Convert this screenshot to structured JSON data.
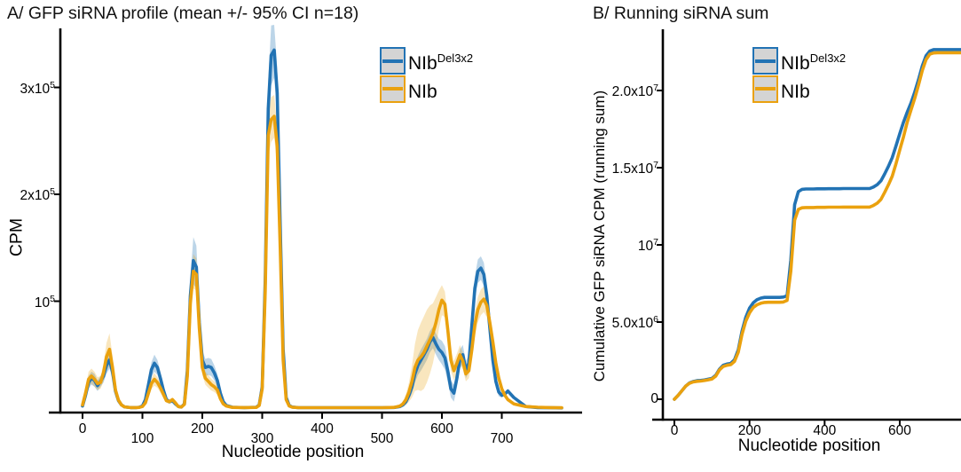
{
  "panels": {
    "a": {
      "title": "A/ GFP siRNA profile (mean +/- 95% CI n=18)",
      "xlabel": "Nucleotide position",
      "ylabel": "CPM"
    },
    "b": {
      "title": "B/ Running siRNA sum",
      "xlabel": "Nucleotide position",
      "ylabel": "Cumulative GFP siRNA CPM (running sum)"
    }
  },
  "legend": {
    "items": [
      {
        "label": "NIb",
        "sup": "Del3x2",
        "color": "#2273B4"
      },
      {
        "label": "NIb",
        "sup": "",
        "color": "#EAA10E"
      }
    ],
    "key_fill": "#d4d4d4"
  },
  "colors": {
    "blue_line": "#2273B4",
    "orange_line": "#EAA10E",
    "blue_band": "rgba(34,115,180,0.30)",
    "orange_band": "rgba(234,161,14,0.27)",
    "axis": "#000000"
  },
  "chart_data": [
    {
      "panel": "A",
      "type": "line",
      "title": "A/ GFP siRNA profile (mean +/- 95% CI n=18)",
      "xlabel": "Nucleotide position",
      "ylabel": "CPM",
      "xlim": [
        0,
        800
      ],
      "ylim": [
        0,
        350000
      ],
      "grid": false,
      "legend_position": "top-right-inside",
      "x_ticks": [
        0,
        100,
        200,
        300,
        400,
        500,
        600,
        700
      ],
      "y_ticks": [
        {
          "value": 100000,
          "base": "10",
          "sup": "5"
        },
        {
          "value": 200000,
          "base": "2x10",
          "sup": "5"
        },
        {
          "value": 300000,
          "base": "3x10",
          "sup": "5"
        }
      ],
      "x": [
        0,
        5,
        10,
        15,
        20,
        25,
        30,
        35,
        40,
        45,
        50,
        55,
        60,
        65,
        70,
        80,
        90,
        95,
        100,
        105,
        110,
        115,
        120,
        125,
        130,
        135,
        140,
        145,
        150,
        155,
        160,
        165,
        170,
        175,
        180,
        185,
        190,
        195,
        200,
        205,
        210,
        215,
        220,
        225,
        230,
        235,
        240,
        250,
        270,
        290,
        295,
        300,
        305,
        310,
        315,
        320,
        325,
        330,
        335,
        340,
        345,
        350,
        360,
        380,
        420,
        460,
        500,
        520,
        530,
        535,
        540,
        545,
        550,
        555,
        560,
        565,
        570,
        575,
        580,
        585,
        590,
        595,
        600,
        605,
        610,
        615,
        620,
        625,
        630,
        635,
        640,
        645,
        650,
        655,
        660,
        665,
        670,
        675,
        680,
        685,
        690,
        695,
        700,
        705,
        710,
        720,
        740,
        760,
        780,
        800
      ],
      "series": [
        {
          "name": "NIbDel3x2",
          "values": [
            2000,
            12000,
            24000,
            28000,
            26000,
            21000,
            25000,
            30000,
            40000,
            45000,
            34000,
            16000,
            7000,
            3000,
            1200,
            500,
            500,
            800,
            2000,
            8000,
            22000,
            36000,
            42000,
            38000,
            28000,
            17000,
            8000,
            6000,
            7000,
            4000,
            1500,
            1000,
            4000,
            35000,
            105000,
            138000,
            132000,
            80000,
            45000,
            38000,
            39000,
            38000,
            33000,
            26000,
            14000,
            6000,
            2500,
            800,
            500,
            800,
            3000,
            20000,
            120000,
            280000,
            330000,
            335000,
            295000,
            170000,
            55000,
            10000,
            2500,
            1000,
            500,
            400,
            400,
            400,
            400,
            600,
            1500,
            3000,
            6000,
            12000,
            20000,
            32000,
            40000,
            45000,
            50000,
            55000,
            62000,
            66000,
            60000,
            55000,
            52000,
            47000,
            34000,
            18000,
            14000,
            28000,
            46000,
            50000,
            36000,
            42000,
            78000,
            112000,
            128000,
            131000,
            125000,
            105000,
            75000,
            45000,
            25000,
            15000,
            12000,
            13000,
            16000,
            10000,
            1500,
            500,
            300,
            200
          ],
          "ci": [
            1000,
            4000,
            6000,
            6000,
            6000,
            5000,
            5000,
            6000,
            8000,
            8000,
            7000,
            5000,
            2500,
            1200,
            600,
            300,
            300,
            300,
            800,
            2500,
            5000,
            7000,
            8000,
            7000,
            6000,
            4000,
            2500,
            2000,
            2000,
            1200,
            600,
            500,
            1500,
            8000,
            16000,
            22000,
            20000,
            14000,
            9000,
            8000,
            8000,
            8000,
            7000,
            6000,
            4000,
            2000,
            1000,
            400,
            300,
            400,
            1200,
            6000,
            18000,
            26000,
            28000,
            26000,
            24000,
            18000,
            8000,
            2500,
            1000,
            400,
            300,
            300,
            300,
            300,
            300,
            400,
            800,
            1500,
            2500,
            4000,
            6000,
            8000,
            9000,
            10000,
            10000,
            10000,
            10000,
            10000,
            10000,
            10000,
            11000,
            11000,
            10000,
            8000,
            8000,
            9000,
            9000,
            9000,
            8000,
            8000,
            10000,
            11000,
            11000,
            11000,
            11000,
            10000,
            9000,
            8000,
            6000,
            4000,
            2000,
            1200,
            800,
            500,
            300,
            300,
            200,
            200
          ]
        },
        {
          "name": "NIb",
          "values": [
            3000,
            14000,
            27000,
            30000,
            27000,
            23000,
            24000,
            33000,
            48000,
            55000,
            38000,
            17000,
            7500,
            3000,
            1200,
            500,
            500,
            700,
            1500,
            5000,
            14000,
            23000,
            27000,
            24000,
            19000,
            13000,
            7000,
            6000,
            8000,
            5000,
            1500,
            1000,
            3500,
            30000,
            98000,
            128000,
            125000,
            75000,
            38000,
            28000,
            25000,
            22000,
            20000,
            17000,
            9000,
            4000,
            2000,
            700,
            500,
            700,
            2500,
            18000,
            110000,
            255000,
            270000,
            273000,
            245000,
            150000,
            45000,
            8000,
            2000,
            800,
            500,
            400,
            400,
            400,
            400,
            700,
            2000,
            4000,
            8000,
            15000,
            25000,
            38000,
            45000,
            48000,
            52000,
            58000,
            64000,
            70000,
            80000,
            92000,
            101000,
            97000,
            72000,
            45000,
            35000,
            42000,
            50000,
            44000,
            32000,
            35000,
            55000,
            78000,
            92000,
            99000,
            102000,
            96000,
            80000,
            62000,
            42000,
            28000,
            18000,
            12000,
            8000,
            4000,
            1500,
            800,
            500,
            300
          ],
          "ci": [
            1500,
            5000,
            7000,
            7000,
            7000,
            6000,
            6000,
            8000,
            13000,
            15000,
            11000,
            6000,
            3000,
            1500,
            700,
            300,
            300,
            300,
            600,
            2000,
            4000,
            5000,
            6000,
            5000,
            4500,
            3500,
            2000,
            1800,
            2000,
            1200,
            600,
            500,
            1200,
            7000,
            13000,
            16000,
            15000,
            11000,
            7000,
            6000,
            6000,
            5500,
            5000,
            4500,
            3000,
            1500,
            800,
            300,
            300,
            400,
            1000,
            5000,
            15000,
            20000,
            21000,
            20000,
            18000,
            14000,
            6000,
            2000,
            800,
            400,
            300,
            300,
            300,
            300,
            300,
            500,
            1200,
            2500,
            5000,
            9000,
            15000,
            22000,
            28000,
            32000,
            34000,
            34000,
            32000,
            28000,
            24000,
            18000,
            14000,
            12000,
            11000,
            10000,
            9000,
            9000,
            9000,
            8000,
            7000,
            7000,
            9000,
            11000,
            12000,
            12000,
            12000,
            11000,
            10000,
            9000,
            8000,
            6000,
            3000,
            1800,
            1200,
            700,
            400,
            300,
            200,
            200
          ]
        }
      ]
    },
    {
      "panel": "B",
      "type": "line",
      "title": "B/ Running siRNA sum",
      "xlabel": "Nucleotide position",
      "ylabel": "Cumulative GFP siRNA CPM (running sum)",
      "xlim": [
        0,
        780
      ],
      "ylim_millions": [
        0,
        23
      ],
      "grid": false,
      "legend_position": "top-inside",
      "x_ticks": [
        0,
        200,
        400,
        600
      ],
      "y_ticks": [
        {
          "millions": 0,
          "base": "0",
          "sup": ""
        },
        {
          "millions": 5,
          "base": "5.0x10",
          "sup": "6"
        },
        {
          "millions": 10,
          "base": "10",
          "sup": "7"
        },
        {
          "millions": 15,
          "base": "1.5x10",
          "sup": "7"
        },
        {
          "millions": 20,
          "base": "2.0x10",
          "sup": "7"
        }
      ],
      "x": [
        0,
        10,
        20,
        30,
        40,
        50,
        60,
        70,
        80,
        90,
        100,
        110,
        120,
        130,
        140,
        150,
        160,
        170,
        180,
        190,
        200,
        210,
        220,
        230,
        240,
        250,
        260,
        270,
        280,
        290,
        300,
        310,
        320,
        330,
        340,
        350,
        360,
        370,
        380,
        390,
        400,
        410,
        420,
        430,
        440,
        450,
        460,
        470,
        480,
        490,
        500,
        510,
        520,
        530,
        540,
        550,
        560,
        570,
        580,
        590,
        600,
        610,
        620,
        630,
        640,
        650,
        660,
        670,
        680,
        690,
        700,
        710,
        720,
        730,
        740,
        750,
        760,
        770,
        780
      ],
      "series": [
        {
          "name": "NIbDel3x2",
          "values_millions": [
            0,
            0.25,
            0.55,
            0.85,
            1.05,
            1.15,
            1.2,
            1.22,
            1.25,
            1.3,
            1.35,
            1.55,
            1.95,
            2.2,
            2.28,
            2.32,
            2.55,
            3.2,
            4.4,
            5.3,
            5.9,
            6.25,
            6.45,
            6.55,
            6.6,
            6.6,
            6.6,
            6.6,
            6.6,
            6.62,
            6.7,
            9.0,
            12.6,
            13.45,
            13.6,
            13.62,
            13.62,
            13.62,
            13.63,
            13.63,
            13.63,
            13.64,
            13.64,
            13.64,
            13.64,
            13.65,
            13.65,
            13.65,
            13.65,
            13.65,
            13.65,
            13.65,
            13.65,
            13.75,
            13.9,
            14.15,
            14.6,
            15.1,
            15.65,
            16.4,
            17.2,
            17.95,
            18.6,
            19.2,
            19.9,
            20.7,
            21.6,
            22.25,
            22.55,
            22.65,
            22.65,
            22.65,
            22.65,
            22.65,
            22.65,
            22.65,
            22.65,
            22.65,
            22.65
          ]
        },
        {
          "name": "NIb",
          "values_millions": [
            0,
            0.25,
            0.55,
            0.85,
            1.03,
            1.12,
            1.16,
            1.18,
            1.21,
            1.26,
            1.31,
            1.5,
            1.9,
            2.12,
            2.2,
            2.24,
            2.45,
            3.05,
            4.2,
            5.05,
            5.6,
            5.95,
            6.12,
            6.22,
            6.27,
            6.28,
            6.28,
            6.28,
            6.28,
            6.3,
            6.4,
            8.3,
            11.6,
            12.3,
            12.4,
            12.42,
            12.42,
            12.42,
            12.43,
            12.43,
            12.43,
            12.44,
            12.44,
            12.44,
            12.44,
            12.45,
            12.45,
            12.45,
            12.45,
            12.45,
            12.45,
            12.45,
            12.45,
            12.55,
            12.7,
            12.95,
            13.4,
            13.9,
            14.45,
            15.25,
            16.15,
            17.0,
            17.95,
            18.75,
            19.5,
            20.35,
            21.3,
            22.0,
            22.35,
            22.43,
            22.45,
            22.45,
            22.45,
            22.45,
            22.45,
            22.45,
            22.45,
            22.45,
            22.45
          ]
        }
      ]
    }
  ]
}
